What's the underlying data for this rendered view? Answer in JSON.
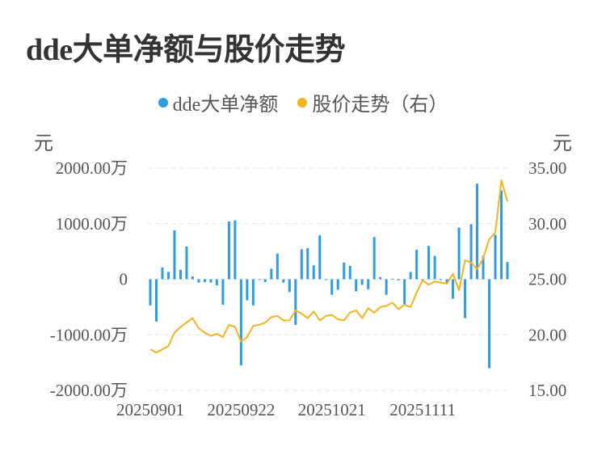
{
  "title": "dde大单净额与股价走势",
  "legend": [
    {
      "name": "dde大单净额",
      "color": "#2e9be6"
    },
    {
      "name": "股价走势（右）",
      "color": "#f5b320"
    }
  ],
  "units": {
    "left": "元",
    "right": "元"
  },
  "chart_data": {
    "type": "bar+line",
    "title": "dde大单净额与股价走势",
    "left_axis": {
      "unit": "元",
      "ticks": [
        2000,
        1000,
        0,
        -1000,
        -2000
      ],
      "tick_labels": [
        "2000.00万",
        "1000.00万",
        "0",
        "-1000.00万",
        "-2000.00万"
      ],
      "ylim": [
        -2000,
        2000
      ]
    },
    "right_axis": {
      "unit": "元",
      "ticks": [
        35,
        30,
        25,
        20,
        15
      ],
      "tick_labels": [
        "35.00",
        "30.00",
        "25.00",
        "20.00",
        "15.00"
      ],
      "ylim": [
        15,
        35
      ]
    },
    "x_tick_labels": [
      "20250901",
      "20250922",
      "20251021",
      "20251111"
    ],
    "x_tick_indices": [
      0,
      15,
      30,
      45
    ],
    "grid": true,
    "legend_position": "top",
    "series": [
      {
        "name": "dde大单净额",
        "type": "bar",
        "axis": "left",
        "color": "#2e9be6",
        "values": [
          -470,
          -760,
          210,
          130,
          880,
          170,
          590,
          50,
          -60,
          -50,
          -60,
          -110,
          -460,
          1040,
          1060,
          -1550,
          -380,
          -470,
          -10,
          -50,
          190,
          460,
          -60,
          -230,
          -820,
          540,
          560,
          250,
          790,
          -10,
          -280,
          -190,
          300,
          240,
          -220,
          -100,
          -180,
          760,
          40,
          -280,
          10,
          -20,
          -450,
          130,
          530,
          -20,
          600,
          420,
          -10,
          -80,
          -350,
          930,
          -700,
          990,
          1720,
          420,
          -1600,
          800,
          1600,
          310
        ]
      },
      {
        "name": "股价走势（右）",
        "type": "line",
        "axis": "right",
        "color": "#f5b320",
        "values": [
          18.7,
          18.4,
          18.7,
          19.0,
          20.2,
          20.7,
          21.1,
          21.5,
          20.6,
          20.2,
          19.9,
          20.1,
          19.8,
          20.9,
          20.7,
          19.4,
          19.8,
          20.8,
          20.9,
          21.1,
          21.6,
          21.7,
          21.3,
          21.3,
          22.2,
          21.9,
          21.5,
          22.1,
          21.3,
          21.7,
          21.8,
          21.4,
          21.3,
          22.0,
          22.2,
          21.5,
          22.4,
          22.0,
          22.5,
          22.6,
          22.9,
          22.3,
          22.7,
          22.5,
          23.8,
          24.9,
          24.5,
          24.8,
          24.7,
          24.6,
          25.5,
          24.0,
          26.7,
          26.5,
          25.9,
          26.9,
          28.6,
          29.2,
          33.9,
          32.0
        ]
      }
    ]
  }
}
